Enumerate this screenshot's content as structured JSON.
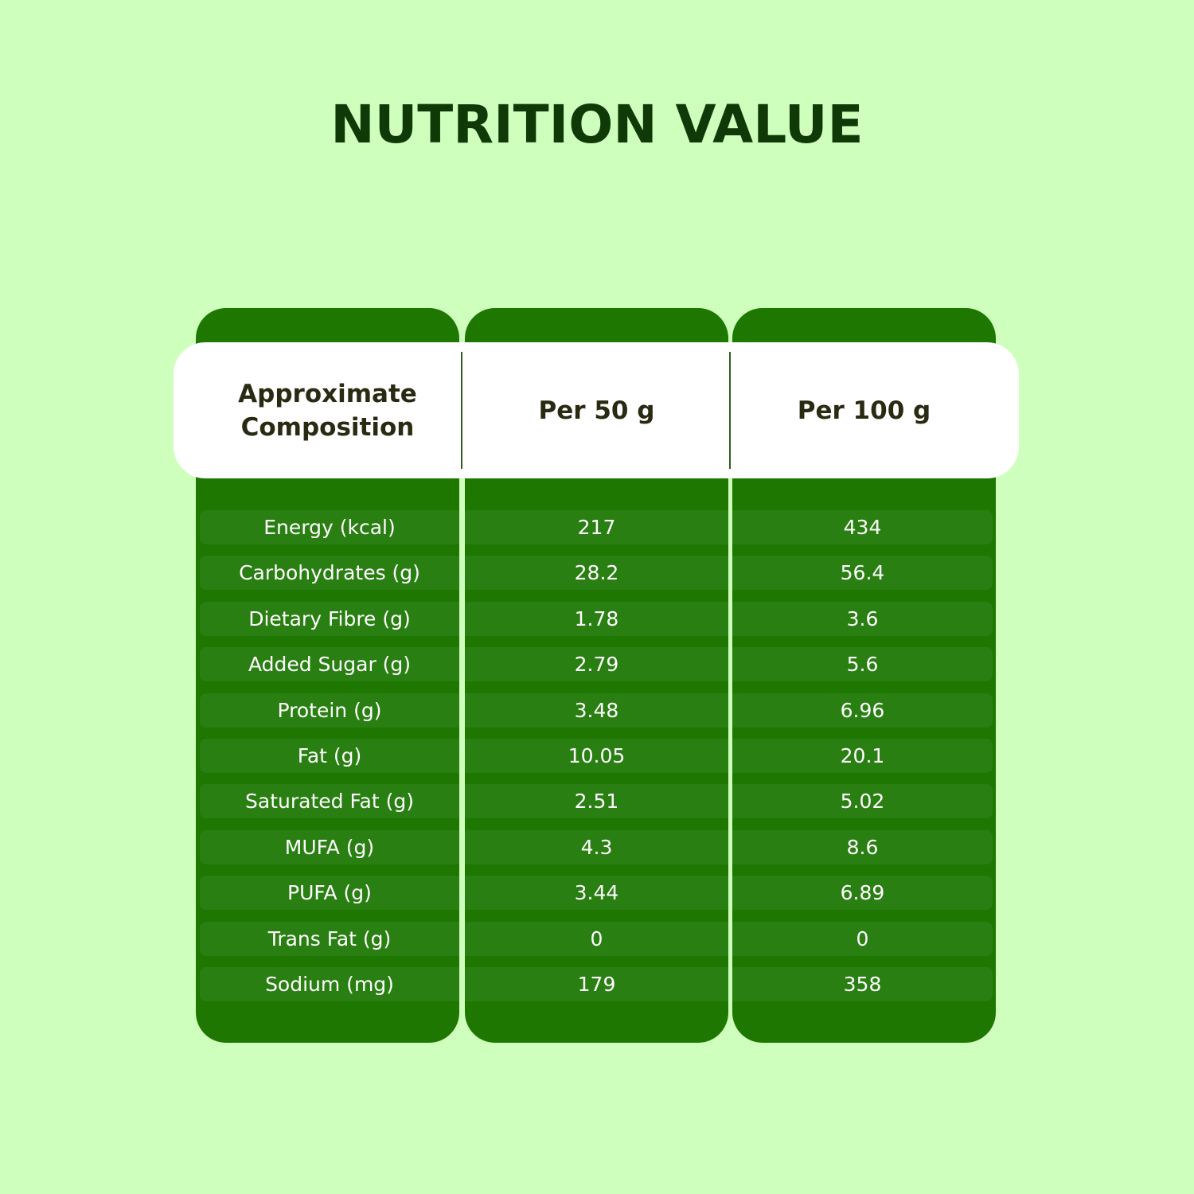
{
  "title": "NUTRITION VALUE",
  "colors": {
    "background": "#cfffbc",
    "column": "#1d7700",
    "row_band": "#297f12",
    "title": "#0f3a08",
    "header_text": "#2a2a12"
  },
  "table": {
    "headers": [
      "Approximate Composition",
      "Per 50 g",
      "Per 100 g"
    ],
    "rows": [
      [
        "Energy (kcal)",
        "217",
        "434"
      ],
      [
        "Carbohydrates (g)",
        "28.2",
        "56.4"
      ],
      [
        "Dietary Fibre (g)",
        "1.78",
        "3.6"
      ],
      [
        "Added Sugar (g)",
        "2.79",
        "5.6"
      ],
      [
        "Protein (g)",
        "3.48",
        "6.96"
      ],
      [
        "Fat (g)",
        "10.05",
        "20.1"
      ],
      [
        "Saturated Fat (g)",
        "2.51",
        "5.02"
      ],
      [
        "MUFA (g)",
        "4.3",
        "8.6"
      ],
      [
        "PUFA (g)",
        "3.44",
        "6.89"
      ],
      [
        "Trans Fat (g)",
        "0",
        "0"
      ],
      [
        "Sodium (mg)",
        "179",
        "358"
      ]
    ]
  }
}
